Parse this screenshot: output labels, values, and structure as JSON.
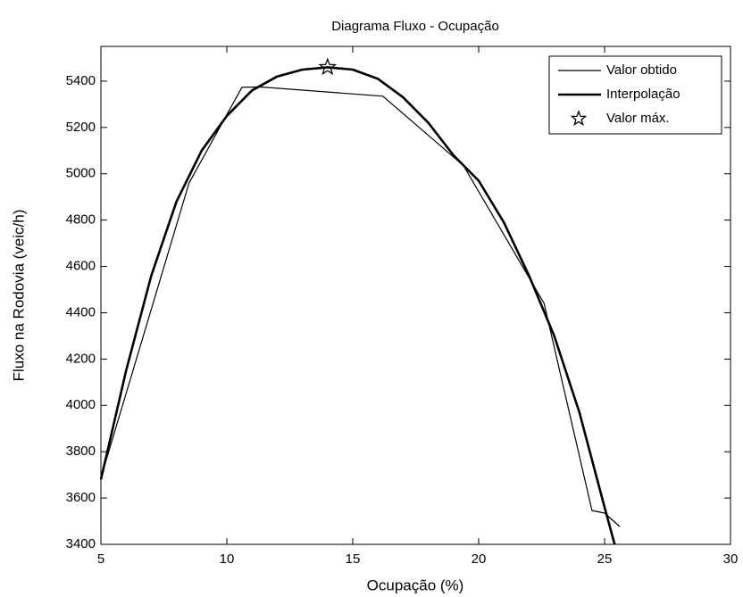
{
  "chart_data": {
    "type": "line",
    "title": "Diagrama Fluxo - Ocupação",
    "xlabel": "Ocupação (%)",
    "ylabel": "Fluxo na Rodovia (veic/h)",
    "xlim": [
      5,
      30
    ],
    "ylim": [
      3400,
      5550
    ],
    "xticks": [
      5,
      10,
      15,
      20,
      25,
      30
    ],
    "yticks": [
      3400,
      3600,
      3800,
      4000,
      4200,
      4400,
      4600,
      4800,
      5000,
      5200,
      5400
    ],
    "grid": false,
    "legend": "upper right",
    "series": [
      {
        "name": "Valor obtido",
        "color": "#000000",
        "style": "thin",
        "x": [
          5,
          8.5,
          10.6,
          11.3,
          16.2,
          19.4,
          22.6,
          24.5,
          25.0,
          25.6
        ],
        "values": [
          3688,
          4960,
          5373,
          5375,
          5335,
          5035,
          4440,
          3546,
          3535,
          3477
        ]
      },
      {
        "name": "Interpolação",
        "color": "#000000",
        "style": "thick",
        "x": [
          5,
          6,
          7,
          8,
          9,
          10,
          11,
          12,
          13,
          14,
          15,
          16,
          17,
          18,
          19,
          20,
          21,
          22,
          23,
          24,
          25,
          25.4
        ],
        "values": [
          3680,
          4150,
          4560,
          4880,
          5100,
          5250,
          5360,
          5420,
          5450,
          5460,
          5450,
          5410,
          5330,
          5220,
          5080,
          4970,
          4790,
          4560,
          4300,
          3970,
          3560,
          3400
        ]
      },
      {
        "name": "Valor máx.",
        "color": "#000000",
        "style": "star",
        "x": [
          14
        ],
        "values": [
          5460
        ]
      }
    ]
  }
}
